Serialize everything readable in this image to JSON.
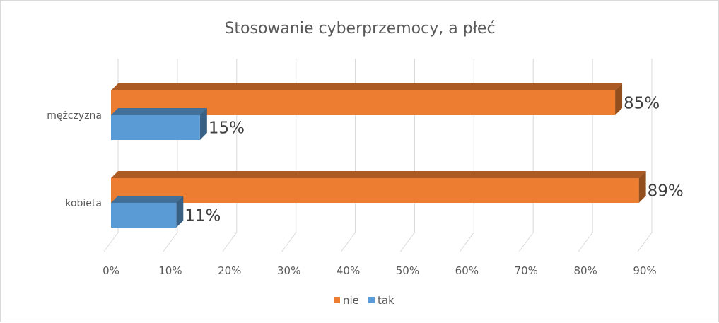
{
  "chart_data": {
    "type": "bar",
    "orientation": "horizontal",
    "style": "3d-clustered",
    "title": "Stosowanie cyberprzemocy,  a płeć",
    "categories": [
      "mężczyzna",
      "kobieta"
    ],
    "series": [
      {
        "name": "nie",
        "color": "#ED7D31",
        "values": [
          0.85,
          0.89
        ],
        "labels": [
          "85%",
          "89%"
        ]
      },
      {
        "name": "tak",
        "color": "#5B9BD5",
        "values": [
          0.15,
          0.11
        ],
        "labels": [
          "15%",
          "11%"
        ]
      }
    ],
    "xlim": [
      0,
      0.9
    ],
    "x_ticks": [
      0,
      0.1,
      0.2,
      0.3,
      0.4,
      0.5,
      0.6,
      0.7,
      0.8,
      0.9
    ],
    "x_tick_labels": [
      "0%",
      "10%",
      "20%",
      "30%",
      "40%",
      "50%",
      "60%",
      "70%",
      "80%",
      "90%"
    ],
    "gridlines": true,
    "legend": {
      "position": "bottom",
      "items": [
        "nie",
        "tak"
      ]
    }
  }
}
